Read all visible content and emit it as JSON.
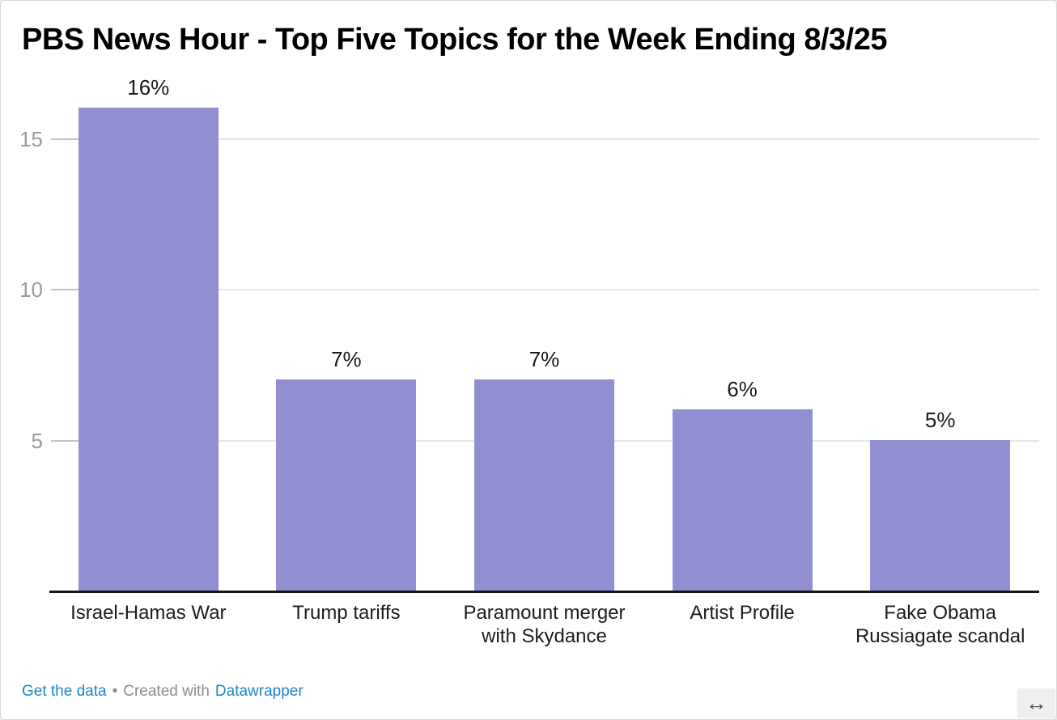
{
  "title": "PBS News Hour - Top Five Topics for the Week Ending 8/3/25",
  "chart_data": {
    "type": "bar",
    "title": "PBS News Hour - Top Five Topics for the Week Ending 8/3/25",
    "categories": [
      "Israel-Hamas War",
      "Trump tariffs",
      "Paramount merger with Skydance",
      "Artist Profile",
      "Fake Obama Russiagate scandal"
    ],
    "values": [
      16,
      7,
      7,
      6,
      5
    ],
    "value_labels": [
      "16%",
      "7%",
      "7%",
      "6%",
      "5%"
    ],
    "unit": "%",
    "xlabel": "",
    "ylabel": "",
    "yticks": [
      5,
      10,
      15
    ],
    "ylim": [
      0,
      16
    ],
    "grid": true,
    "legend": "none",
    "bar_color": "#918fd1"
  },
  "footer": {
    "get_data_label": "Get the data",
    "separator": "•",
    "created_with_label": "Created with",
    "datawrapper_label": "Datawrapper"
  },
  "icons": {
    "resize_horizontal": "↔"
  },
  "colors": {
    "bar": "#918fd1",
    "link": "#1d86c8",
    "muted_text": "#8c8c8c",
    "axis_label": "#9b9b9b",
    "value_label": "#1a1a1a",
    "gridline": "#e6e6e6",
    "axis_line": "#141414",
    "card_border": "#d8d8d8"
  }
}
